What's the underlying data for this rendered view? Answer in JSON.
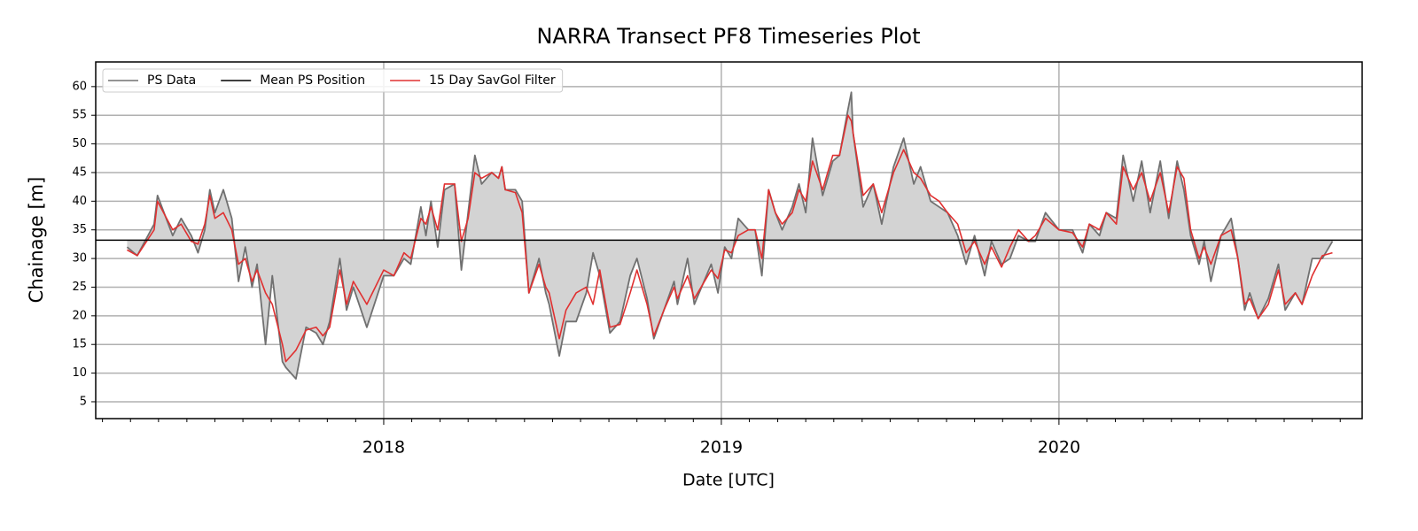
{
  "chart_data": {
    "type": "line",
    "title": "NARRA Transect PF8 Timeseries Plot",
    "xlabel": "Date [UTC]",
    "ylabel": "Chainage [m]",
    "x": [
      2017.24,
      2017.27,
      2017.32,
      2017.33,
      2017.375,
      2017.4,
      2017.43,
      2017.45,
      2017.47,
      2017.485,
      2017.5,
      2017.525,
      2017.55,
      2017.57,
      2017.59,
      2017.61,
      2017.625,
      2017.65,
      2017.67,
      2017.7,
      2017.71,
      2017.74,
      2017.77,
      2017.8,
      2017.82,
      2017.84,
      2017.87,
      2017.89,
      2017.91,
      2017.95,
      2018.0,
      2018.03,
      2018.06,
      2018.08,
      2018.11,
      2018.125,
      2018.14,
      2018.16,
      2018.18,
      2018.21,
      2018.23,
      2018.25,
      2018.27,
      2018.29,
      2018.32,
      2018.34,
      2018.35,
      2018.36,
      2018.39,
      2018.41,
      2018.43,
      2018.46,
      2018.48,
      2018.49,
      2018.52,
      2018.54,
      2018.57,
      2018.6,
      2018.62,
      2018.64,
      2018.67,
      2018.7,
      2018.73,
      2018.75,
      2018.78,
      2018.8,
      2018.83,
      2018.86,
      2018.87,
      2018.9,
      2018.92,
      2018.97,
      2018.99,
      2019.01,
      2019.03,
      2019.05,
      2019.08,
      2019.1,
      2019.12,
      2019.14,
      2019.16,
      2019.18,
      2019.21,
      2019.23,
      2019.25,
      2019.27,
      2019.3,
      2019.33,
      2019.35,
      2019.375,
      2019.385,
      2019.39,
      2019.42,
      2019.45,
      2019.475,
      2019.51,
      2019.54,
      2019.57,
      2019.59,
      2019.62,
      2019.645,
      2019.67,
      2019.7,
      2019.725,
      2019.75,
      2019.78,
      2019.8,
      2019.83,
      2019.855,
      2019.88,
      2019.91,
      2019.93,
      2019.96,
      2020.0,
      2020.04,
      2020.07,
      2020.09,
      2020.12,
      2020.14,
      2020.17,
      2020.19,
      2020.22,
      2020.245,
      2020.27,
      2020.3,
      2020.325,
      2020.35,
      2020.37,
      2020.39,
      2020.415,
      2020.43,
      2020.45,
      2020.48,
      2020.51,
      2020.53,
      2020.55,
      2020.565,
      2020.59,
      2020.62,
      2020.65,
      2020.67,
      2020.7,
      2020.72,
      2020.75,
      2020.78,
      2020.81
    ],
    "series": [
      {
        "name": "PS Data",
        "color": "#707070",
        "values": [
          32,
          30.5,
          36,
          41,
          34,
          37,
          34,
          31,
          35,
          42,
          38,
          42,
          37,
          26,
          32,
          25,
          29,
          15,
          27,
          12,
          11,
          9,
          18,
          17,
          15,
          19,
          30,
          21,
          25,
          18,
          27,
          27,
          30,
          29,
          39,
          34,
          40,
          32,
          42,
          43,
          28,
          38,
          48,
          43,
          45,
          44,
          46,
          42,
          42,
          40,
          24,
          30,
          24,
          22,
          13,
          19,
          19,
          24,
          31,
          27,
          17,
          19,
          27,
          30,
          23,
          16,
          21,
          26,
          22,
          30,
          22,
          29,
          24,
          32,
          30,
          37,
          35,
          35,
          27,
          42,
          38,
          35,
          39,
          43,
          38,
          51,
          41,
          47,
          48,
          56,
          59,
          52,
          39,
          43,
          36,
          46,
          51,
          43,
          46,
          40,
          39,
          38,
          34,
          29,
          34,
          27,
          33,
          29,
          30,
          34,
          33,
          33,
          38,
          35,
          35,
          31,
          36,
          34,
          38,
          37,
          48,
          40,
          47,
          38,
          47,
          37,
          47,
          42,
          34,
          29,
          33,
          26,
          34,
          37,
          30,
          21,
          24,
          19.5,
          23,
          29,
          21,
          24,
          22,
          30,
          30,
          33
        ]
      },
      {
        "name": "15 Day SavGol Filter",
        "color": "#e03030",
        "values": [
          31.5,
          30.5,
          35,
          40,
          35,
          36,
          33,
          32.5,
          36,
          41,
          37,
          38,
          35,
          29,
          30,
          26,
          28,
          24,
          22,
          15,
          12,
          14,
          17.5,
          18,
          16.5,
          18,
          28,
          22,
          26,
          22,
          28,
          27,
          31,
          30,
          37,
          36,
          39,
          35,
          43,
          43,
          33,
          37,
          45,
          44,
          45,
          44,
          46,
          42,
          41.5,
          38,
          24,
          29,
          25,
          24,
          16,
          21,
          24,
          25,
          22,
          28,
          18,
          18.5,
          24,
          28,
          22,
          16.5,
          21,
          25,
          23,
          27,
          23,
          28,
          26.5,
          31.5,
          31,
          34,
          35,
          35,
          30,
          42,
          38,
          36,
          38,
          42,
          40,
          47,
          42,
          48,
          48,
          55,
          54,
          52,
          41,
          43,
          38,
          45,
          49,
          45,
          44,
          41,
          40,
          38,
          36,
          31,
          33,
          29,
          32,
          28.5,
          32,
          35,
          33,
          34,
          37,
          35,
          34.5,
          32,
          36,
          35,
          38,
          36,
          46,
          42,
          45,
          40,
          45,
          38,
          46,
          44,
          35,
          30,
          32,
          29,
          34,
          35,
          30,
          22,
          23,
          19.5,
          22,
          28,
          22,
          24,
          22,
          27,
          30.5,
          31
        ]
      }
    ],
    "mean": {
      "name": "Mean PS Position",
      "color": "#000000",
      "value": 33.2
    },
    "fill_color": "#d3d3d3",
    "xlim": [
      2017.147,
      2020.898
    ],
    "xticks": [
      2018,
      2019,
      2020
    ],
    "xminorticks": [
      2017.167,
      2017.25,
      2017.333,
      2017.417,
      2017.5,
      2017.583,
      2017.667,
      2017.75,
      2017.833,
      2017.917,
      2018.083,
      2018.167,
      2018.25,
      2018.333,
      2018.417,
      2018.5,
      2018.583,
      2018.667,
      2018.75,
      2018.833,
      2018.917,
      2019.083,
      2019.167,
      2019.25,
      2019.333,
      2019.417,
      2019.5,
      2019.583,
      2019.667,
      2019.75,
      2019.833,
      2019.917,
      2020.083,
      2020.167,
      2020.25,
      2020.333,
      2020.417,
      2020.5,
      2020.583,
      2020.667,
      2020.75,
      2020.833
    ],
    "ylim": [
      2.06,
      64.3
    ],
    "yticks": [
      5,
      10,
      15,
      20,
      25,
      30,
      35,
      40,
      45,
      50,
      55,
      60
    ],
    "grid": true,
    "legend": "upper left"
  }
}
